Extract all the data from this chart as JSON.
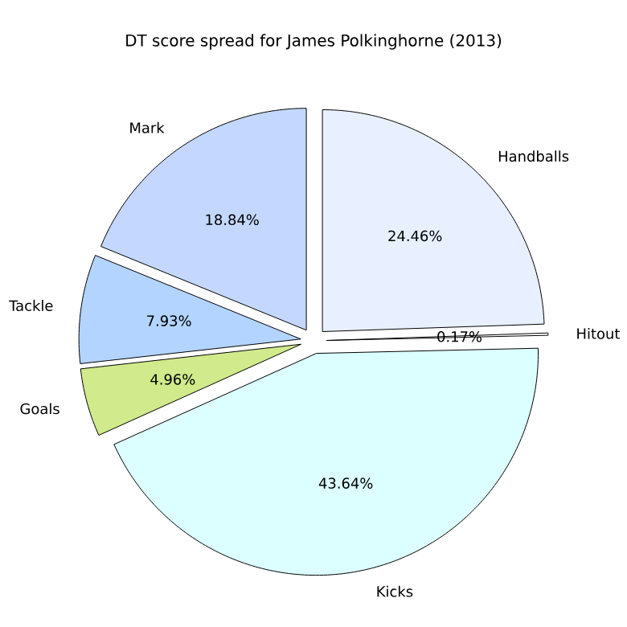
{
  "chart_data": {
    "type": "pie",
    "title": "DT score spread for James Polkinghorne (2013)",
    "categories": [
      "Handballs",
      "Hitout",
      "Kicks",
      "Goals",
      "Tackle",
      "Mark"
    ],
    "values": [
      24.46,
      0.17,
      43.64,
      4.96,
      7.93,
      18.84
    ],
    "value_labels": [
      "24.46%",
      "0.17%",
      "43.64%",
      "4.96%",
      "7.93%",
      "18.84%"
    ],
    "colors": [
      "#e8f0ff",
      "#ffffff",
      "#dcffff",
      "#d0ea8c",
      "#b3d4ff",
      "#c4d8ff"
    ]
  }
}
